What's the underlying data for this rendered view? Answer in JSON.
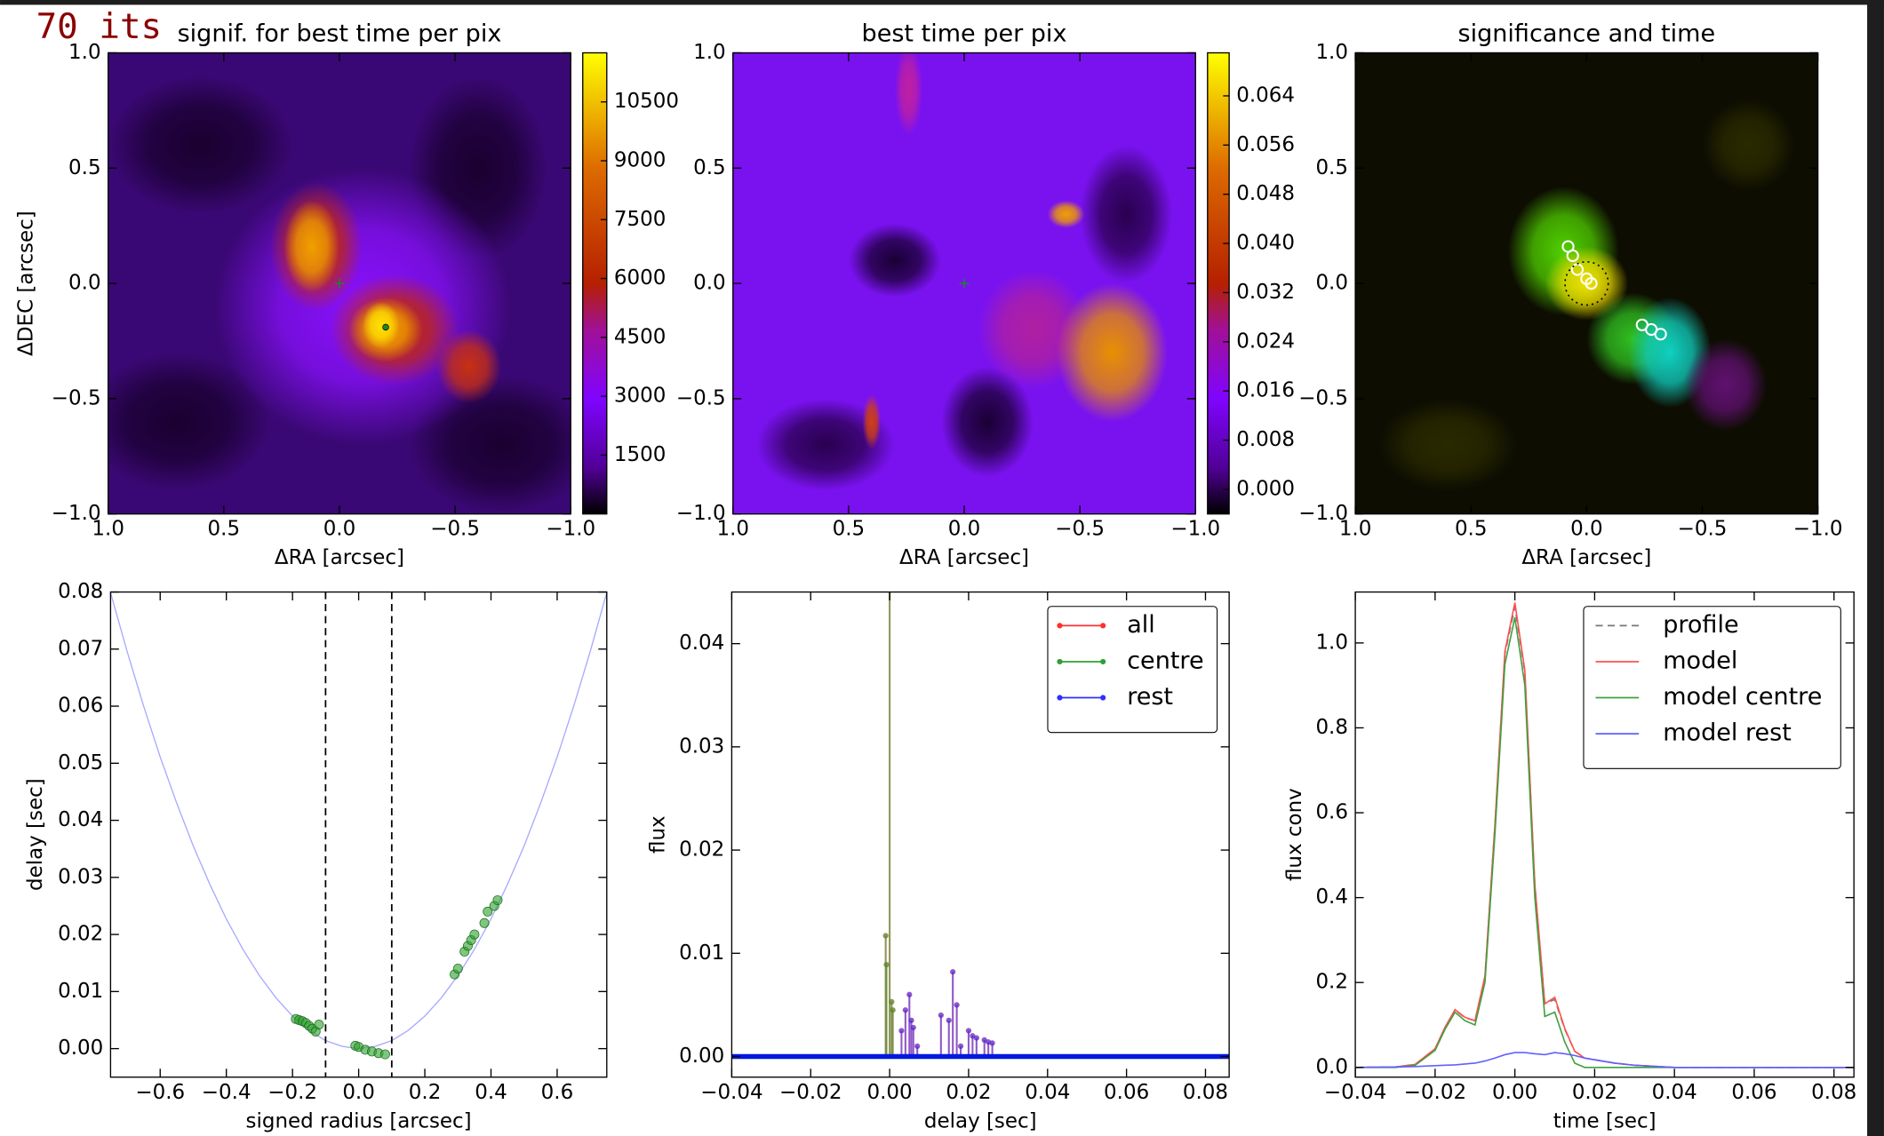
{
  "overlay_text": "70 its",
  "chart_data": [
    {
      "type": "heatmap",
      "title": "signif. for best time per pix",
      "xlabel": "ΔRA [arcsec]",
      "ylabel": "ΔDEC [arcsec]",
      "xlim": [
        1,
        -1
      ],
      "ylim": [
        -1,
        1
      ],
      "xticks": [
        {
          "value": 1,
          "label": "1.0"
        },
        0.5,
        {
          "value": 0,
          "label": "0.0"
        },
        {
          "value": -0.5,
          "label": "−0.5"
        },
        {
          "value": -1,
          "label": "−1.0"
        }
      ],
      "yticks": [
        {
          "value": -1,
          "label": "−1.0"
        },
        {
          "value": -0.5,
          "label": "−0.5"
        },
        {
          "value": 0,
          "label": "0.0"
        },
        0.5,
        {
          "value": 1,
          "label": "1.0"
        }
      ],
      "colorbar": {
        "lim": [
          0,
          11750
        ],
        "ticks": [
          1500,
          3000,
          4500,
          6000,
          7500,
          9000,
          10500
        ]
      }
    },
    {
      "type": "heatmap",
      "title": "best time per pix",
      "xlabel": "ΔRA [arcsec]",
      "xlim": [
        1,
        -1
      ],
      "ylim": [
        -1,
        1
      ],
      "xticks": [
        {
          "value": 1,
          "label": "1.0"
        },
        0.5,
        {
          "value": 0,
          "label": "0.0"
        },
        {
          "value": -0.5,
          "label": "−0.5"
        },
        {
          "value": -1,
          "label": "−1.0"
        }
      ],
      "yticks": [
        {
          "value": -1,
          "label": "−1.0"
        },
        {
          "value": -0.5,
          "label": "−0.5"
        },
        {
          "value": 0,
          "label": "0.0"
        },
        0.5,
        {
          "value": 1,
          "label": "1.0"
        }
      ],
      "colorbar": {
        "lim": [
          -0.004,
          0.071
        ],
        "ticks": [
          {
            "value": 0,
            "label": "0.000"
          },
          0.008,
          0.016,
          0.024,
          0.032,
          {
            "value": 0.04,
            "label": "0.040"
          },
          0.048,
          0.056,
          0.064
        ]
      }
    },
    {
      "type": "heatmap",
      "title": "significance and time",
      "xlabel": "ΔRA [arcsec]",
      "xlim": [
        1,
        -1
      ],
      "ylim": [
        -1,
        1
      ],
      "xticks": [
        {
          "value": 1,
          "label": "1.0"
        },
        0.5,
        {
          "value": 0,
          "label": "0.0"
        },
        {
          "value": -0.5,
          "label": "−0.5"
        },
        {
          "value": -1,
          "label": "−1.0"
        }
      ],
      "yticks": [
        {
          "value": -1,
          "label": "−1.0"
        },
        {
          "value": -0.5,
          "label": "−0.5"
        },
        {
          "value": 0,
          "label": "0.0"
        },
        0.5,
        {
          "value": 1,
          "label": "1.0"
        }
      ]
    },
    {
      "type": "scatter",
      "xlabel": "signed radius [arcsec]",
      "ylabel": "delay [sec]",
      "xlim": [
        -0.75,
        0.75
      ],
      "ylim": [
        -0.005,
        0.08
      ],
      "xticks": [
        {
          "value": -0.6,
          "label": "−0.6"
        },
        {
          "value": -0.4,
          "label": "−0.4"
        },
        {
          "value": -0.2,
          "label": "−0.2"
        },
        {
          "value": 0,
          "label": "0.0"
        },
        0.2,
        0.4,
        0.6
      ],
      "yticks": [
        {
          "value": 0,
          "label": "0.00"
        },
        0.01,
        0.02,
        0.03,
        0.04,
        0.05,
        0.06,
        0.07,
        0.08
      ],
      "curve": {
        "color": "#aaaaff",
        "x": [
          -0.75,
          -0.7,
          -0.65,
          -0.6,
          -0.55,
          -0.5,
          -0.45,
          -0.4,
          -0.35,
          -0.3,
          -0.25,
          -0.2,
          -0.15,
          -0.1,
          -0.05,
          0,
          0.05,
          0.1,
          0.15,
          0.2,
          0.25,
          0.3,
          0.35,
          0.4,
          0.45,
          0.5,
          0.55,
          0.6,
          0.65,
          0.7,
          0.75
        ],
        "values": [
          0.0799,
          0.0696,
          0.06,
          0.0511,
          0.043,
          0.0355,
          0.0288,
          0.0227,
          0.0174,
          0.0128,
          0.0089,
          0.0057,
          0.0032,
          0.0014,
          0.0004,
          0,
          0.0004,
          0.0014,
          0.0032,
          0.0057,
          0.0089,
          0.0128,
          0.0174,
          0.0227,
          0.0288,
          0.0355,
          0.043,
          0.0511,
          0.06,
          0.0696,
          0.0799
        ]
      },
      "points": {
        "color": "#2ca02c",
        "x": [
          -0.19,
          -0.18,
          -0.17,
          -0.16,
          -0.15,
          -0.14,
          -0.13,
          -0.12,
          -0.01,
          0,
          0.02,
          0.04,
          0.06,
          0.08,
          0.29,
          0.3,
          0.32,
          0.33,
          0.34,
          0.35,
          0.38,
          0.39,
          0.41,
          0.42
        ],
        "values": [
          0.0052,
          0.005,
          0.0048,
          0.0045,
          0.004,
          0.0035,
          0.003,
          0.0042,
          0.0005,
          0.0003,
          -0.0002,
          -0.0005,
          -0.0008,
          -0.001,
          0.013,
          0.014,
          0.017,
          0.018,
          0.019,
          0.02,
          0.022,
          0.024,
          0.025,
          0.026
        ]
      },
      "vlines": [
        -0.1,
        0.1
      ]
    },
    {
      "type": "stem",
      "xlabel": "delay [sec]",
      "ylabel": "flux",
      "xlim": [
        -0.04,
        0.086
      ],
      "ylim": [
        -0.002,
        0.045
      ],
      "xticks": [
        {
          "value": -0.04,
          "label": "−0.04"
        },
        {
          "value": -0.02,
          "label": "−0.02"
        },
        {
          "value": 0,
          "label": "0.00"
        },
        0.02,
        0.04,
        0.06,
        0.08
      ],
      "yticks": [
        {
          "value": 0,
          "label": "0.00"
        },
        0.01,
        0.02,
        0.03,
        0.04
      ],
      "series": [
        {
          "name": "all",
          "color": "#ff3030",
          "x": [
            -0.001,
            -0.0008,
            0,
            0.0005,
            0.0008,
            0.003,
            0.004,
            0.005,
            0.0055,
            0.006,
            0.007,
            0.013,
            0.015,
            0.016,
            0.017,
            0.018,
            0.02,
            0.021,
            0.022,
            0.024,
            0.025,
            0.026
          ],
          "values": [
            0.0117,
            0.0089,
            0.06,
            0.0053,
            0.0045,
            0.0025,
            0.0045,
            0.006,
            0.0035,
            0.0028,
            0.001,
            0.004,
            0.0035,
            0.0082,
            0.005,
            0.001,
            0.0025,
            0.002,
            0.0018,
            0.0016,
            0.0014,
            0.0013
          ]
        },
        {
          "name": "centre",
          "color": "#30a030",
          "x": [
            -0.001,
            -0.0008,
            0,
            0.0005,
            0.0008
          ],
          "values": [
            0.0117,
            0.0089,
            0.06,
            0.0053,
            0.0045
          ]
        },
        {
          "name": "rest",
          "color": "#3030ff",
          "x": [
            0.003,
            0.004,
            0.005,
            0.0055,
            0.006,
            0.007,
            0.013,
            0.015,
            0.016,
            0.017,
            0.018,
            0.02,
            0.021,
            0.022,
            0.024,
            0.025,
            0.026
          ],
          "values": [
            0.0025,
            0.0045,
            0.006,
            0.0035,
            0.0028,
            0.001,
            0.004,
            0.0035,
            0.0082,
            0.005,
            0.001,
            0.0025,
            0.002,
            0.0018,
            0.0016,
            0.0014,
            0.0013
          ]
        }
      ]
    },
    {
      "type": "line",
      "xlabel": "time [sec]",
      "ylabel": "flux conv",
      "xlim": [
        -0.04,
        0.085
      ],
      "ylim": [
        -0.023,
        1.12
      ],
      "xticks": [
        {
          "value": -0.04,
          "label": "−0.04"
        },
        {
          "value": -0.02,
          "label": "−0.02"
        },
        {
          "value": 0,
          "label": "0.00"
        },
        0.02,
        0.04,
        0.06,
        0.08
      ],
      "yticks": [
        {
          "value": 0,
          "label": "0.0"
        },
        0.2,
        0.4,
        0.6,
        0.8,
        {
          "value": 1,
          "label": "1.0"
        }
      ],
      "x": [
        -0.04,
        -0.03,
        -0.025,
        -0.02,
        -0.0175,
        -0.015,
        -0.0125,
        -0.01,
        -0.0075,
        -0.005,
        -0.0025,
        0,
        0.0025,
        0.005,
        0.0075,
        0.01,
        0.0125,
        0.015,
        0.0175,
        0.02,
        0.025,
        0.03,
        0.04,
        0.085
      ],
      "series": [
        {
          "name": "profile",
          "color": "#777777",
          "dashed": true,
          "values": [
            0,
            0.001,
            0.007,
            0.044,
            0.094,
            0.135,
            0.117,
            0.11,
            0.214,
            0.57,
            0.975,
            1.085,
            0.93,
            0.43,
            0.15,
            0.16,
            0.09,
            0.038,
            0.022,
            0.018,
            0.01,
            0.005,
            0,
            0
          ]
        },
        {
          "name": "model",
          "color": "#ff5050",
          "values": [
            0,
            0.001,
            0.007,
            0.044,
            0.095,
            0.136,
            0.118,
            0.11,
            0.215,
            0.572,
            0.98,
            1.095,
            0.935,
            0.432,
            0.15,
            0.165,
            0.092,
            0.038,
            0.022,
            0.018,
            0.01,
            0.005,
            0,
            0
          ]
        },
        {
          "name": "model centre",
          "color": "#40a040",
          "values": [
            0,
            0,
            0.005,
            0.04,
            0.09,
            0.13,
            0.11,
            0.1,
            0.2,
            0.55,
            0.95,
            1.06,
            0.9,
            0.4,
            0.12,
            0.13,
            0.06,
            0.01,
            0,
            0,
            0,
            0,
            0,
            0
          ]
        },
        {
          "name": "model rest",
          "color": "#6060ff",
          "values": [
            0,
            0.001,
            0.002,
            0.004,
            0.005,
            0.006,
            0.008,
            0.01,
            0.015,
            0.022,
            0.03,
            0.035,
            0.035,
            0.032,
            0.03,
            0.035,
            0.032,
            0.028,
            0.022,
            0.018,
            0.01,
            0.005,
            0,
            0
          ]
        }
      ]
    }
  ]
}
